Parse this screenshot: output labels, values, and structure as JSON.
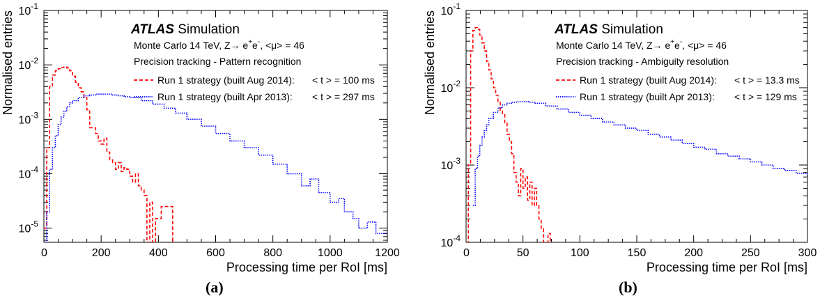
{
  "colors": {
    "red": "#ff0000",
    "blue": "#0000ff",
    "axis": "#000000"
  },
  "chart_data": [
    {
      "type": "line",
      "panel_label": "(a)",
      "experiment": "ATLAS",
      "experiment_tag": "Simulation",
      "info_lines": [
        "Monte Carlo 14 TeV,",
        "Precision tracking - Pattern recognition"
      ],
      "process": {
        "prefix": "Z→ e",
        "sup1": "+",
        "mid": "e",
        "sup2": "-",
        "suffix": ", <μ> = 46"
      },
      "xlabel": "Processing time per RoI [ms]",
      "ylabel": "Normalised entries",
      "xlim": [
        0,
        1200
      ],
      "ylim": [
        5.5e-06,
        0.1
      ],
      "yscale": "log",
      "x_ticks": [
        "0",
        "200",
        "400",
        "600",
        "800",
        "1000",
        "1200"
      ],
      "x_tick_values": [
        0,
        200,
        400,
        600,
        800,
        1000,
        1200
      ],
      "y_ticks": [
        {
          "base": "10",
          "exp": "-5",
          "v": 1e-05
        },
        {
          "base": "10",
          "exp": "-4",
          "v": 0.0001
        },
        {
          "base": "10",
          "exp": "-3",
          "v": 0.001
        },
        {
          "base": "10",
          "exp": "-2",
          "v": 0.01
        },
        {
          "base": "10",
          "exp": "-1",
          "v": 0.1
        }
      ],
      "series": [
        {
          "name": "Run 1 strategy (built Aug 2014):",
          "mean_label": "< t > =  100 ms",
          "color": "#ff0000",
          "style": "dashed",
          "points": [
            [
              0,
              1e-05
            ],
            [
              10,
              0.0003
            ],
            [
              20,
              0.004
            ],
            [
              30,
              0.0065
            ],
            [
              40,
              0.0078
            ],
            [
              50,
              0.0085
            ],
            [
              60,
              0.009
            ],
            [
              70,
              0.0092
            ],
            [
              80,
              0.0088
            ],
            [
              90,
              0.0078
            ],
            [
              100,
              0.0062
            ],
            [
              110,
              0.0048
            ],
            [
              120,
              0.0038
            ],
            [
              130,
              0.0032
            ],
            [
              140,
              0.0025
            ],
            [
              150,
              0.0015
            ],
            [
              160,
              0.0007
            ],
            [
              170,
              0.0007
            ],
            [
              180,
              0.00055
            ],
            [
              190,
              0.0004
            ],
            [
              200,
              0.00035
            ],
            [
              210,
              0.00045
            ],
            [
              220,
              0.00025
            ],
            [
              230,
              0.00018
            ],
            [
              240,
              0.00016
            ],
            [
              250,
              0.00012
            ],
            [
              260,
              0.00016
            ],
            [
              270,
              0.00011
            ],
            [
              280,
              0.00013
            ],
            [
              290,
              0.00012
            ],
            [
              300,
              9e-05
            ],
            [
              310,
              7e-05
            ],
            [
              320,
              0.0001
            ],
            [
              330,
              6e-05
            ],
            [
              340,
              5e-05
            ],
            [
              350,
              4e-05
            ],
            [
              360,
              5.5e-06
            ],
            [
              370,
              3e-05
            ],
            [
              380,
              5.5e-06
            ],
            [
              390,
              1.5e-05
            ],
            [
              400,
              1.5e-05
            ],
            [
              410,
              2.5e-05
            ],
            [
              420,
              2.5e-05
            ],
            [
              430,
              2.5e-05
            ],
            [
              440,
              2.5e-05
            ],
            [
              450,
              5.5e-06
            ]
          ]
        },
        {
          "name": "Run 1 strategy (built Apr 2013):",
          "mean_label": "< t > =  297 ms",
          "color": "#0000ff",
          "style": "dotted",
          "points": [
            [
              0,
              5.5e-06
            ],
            [
              10,
              2e-05
            ],
            [
              20,
              0.00012
            ],
            [
              30,
              0.0003
            ],
            [
              40,
              0.0005
            ],
            [
              50,
              0.0008
            ],
            [
              60,
              0.0011
            ],
            [
              70,
              0.0014
            ],
            [
              80,
              0.0017
            ],
            [
              90,
              0.002
            ],
            [
              100,
              0.0022
            ],
            [
              120,
              0.0025
            ],
            [
              140,
              0.0027
            ],
            [
              160,
              0.0028
            ],
            [
              180,
              0.0029
            ],
            [
              200,
              0.0029
            ],
            [
              220,
              0.0029
            ],
            [
              240,
              0.0028
            ],
            [
              260,
              0.0027
            ],
            [
              280,
              0.0026
            ],
            [
              300,
              0.0025
            ],
            [
              340,
              0.0022
            ],
            [
              380,
              0.0019
            ],
            [
              420,
              0.0016
            ],
            [
              460,
              0.0013
            ],
            [
              500,
              0.001
            ],
            [
              550,
              0.00075
            ],
            [
              600,
              0.00055
            ],
            [
              650,
              0.0004
            ],
            [
              700,
              0.0003
            ],
            [
              750,
              0.00022
            ],
            [
              800,
              0.00015
            ],
            [
              850,
              0.0001
            ],
            [
              900,
              6e-05
            ],
            [
              930,
              8e-05
            ],
            [
              960,
              4.5e-05
            ],
            [
              1000,
              3e-05
            ],
            [
              1030,
              3.5e-05
            ],
            [
              1050,
              2e-05
            ],
            [
              1080,
              1.5e-05
            ],
            [
              1100,
              1e-05
            ],
            [
              1130,
              1.3e-05
            ],
            [
              1160,
              8e-06
            ],
            [
              1200,
              8e-06
            ]
          ]
        }
      ]
    },
    {
      "type": "line",
      "panel_label": "(b)",
      "experiment": "ATLAS",
      "experiment_tag": "Simulation",
      "info_lines": [
        "Monte Carlo 14 TeV,",
        "Precision tracking - Ambiguity resolution"
      ],
      "process": {
        "prefix": "Z→ e",
        "sup1": "+",
        "mid": "e",
        "sup2": "-",
        "suffix": ", <μ> = 46"
      },
      "xlabel": "Processing time per RoI [ms]",
      "ylabel": "Normalised entries",
      "xlim": [
        0,
        300
      ],
      "ylim": [
        0.0001,
        0.1
      ],
      "yscale": "log",
      "x_ticks": [
        "0",
        "50",
        "100",
        "150",
        "200",
        "250",
        "300"
      ],
      "x_tick_values": [
        0,
        50,
        100,
        150,
        200,
        250,
        300
      ],
      "y_ticks": [
        {
          "base": "10",
          "exp": "-4",
          "v": 0.0001
        },
        {
          "base": "10",
          "exp": "-3",
          "v": 0.001
        },
        {
          "base": "10",
          "exp": "-2",
          "v": 0.01
        },
        {
          "base": "10",
          "exp": "-1",
          "v": 0.1
        }
      ],
      "series": [
        {
          "name": "Run 1 strategy (built Aug 2014):",
          "mean_label": "< t > = 13.3 ms",
          "color": "#ff0000",
          "style": "dashed",
          "points": [
            [
              0,
              0.0001
            ],
            [
              2,
              0.001
            ],
            [
              4,
              0.03
            ],
            [
              6,
              0.055
            ],
            [
              8,
              0.06
            ],
            [
              10,
              0.057
            ],
            [
              12,
              0.048
            ],
            [
              14,
              0.038
            ],
            [
              16,
              0.03
            ],
            [
              18,
              0.022
            ],
            [
              20,
              0.017
            ],
            [
              22,
              0.013
            ],
            [
              24,
              0.01
            ],
            [
              26,
              0.008
            ],
            [
              28,
              0.0065
            ],
            [
              30,
              0.005
            ],
            [
              32,
              0.0045
            ],
            [
              34,
              0.0035
            ],
            [
              36,
              0.0025
            ],
            [
              38,
              0.002
            ],
            [
              40,
              0.0014
            ],
            [
              42,
              0.0008
            ],
            [
              44,
              0.0006
            ],
            [
              46,
              0.0004
            ],
            [
              48,
              0.0009
            ],
            [
              50,
              0.0005
            ],
            [
              52,
              0.0007
            ],
            [
              54,
              0.00035
            ],
            [
              56,
              0.0006
            ],
            [
              58,
              0.0003
            ],
            [
              60,
              0.0005
            ],
            [
              62,
              0.0003
            ],
            [
              64,
              0.0002
            ],
            [
              66,
              0.00015
            ],
            [
              68,
              0.0001
            ],
            [
              72,
              0.00013
            ],
            [
              74,
              0.0001
            ]
          ]
        },
        {
          "name": "Run 1 strategy (built Apr 2013):",
          "mean_label": "< t > =  129 ms",
          "color": "#0000ff",
          "style": "dotted",
          "points": [
            [
              6,
              0.0003
            ],
            [
              8,
              0.0009
            ],
            [
              10,
              0.0013
            ],
            [
              12,
              0.0018
            ],
            [
              14,
              0.0023
            ],
            [
              16,
              0.0028
            ],
            [
              18,
              0.0033
            ],
            [
              20,
              0.004
            ],
            [
              24,
              0.0048
            ],
            [
              28,
              0.0055
            ],
            [
              32,
              0.006
            ],
            [
              36,
              0.0063
            ],
            [
              40,
              0.0065
            ],
            [
              45,
              0.0066
            ],
            [
              50,
              0.0066
            ],
            [
              55,
              0.0065
            ],
            [
              60,
              0.0063
            ],
            [
              70,
              0.0058
            ],
            [
              80,
              0.0053
            ],
            [
              90,
              0.0048
            ],
            [
              100,
              0.0044
            ],
            [
              110,
              0.004
            ],
            [
              120,
              0.0036
            ],
            [
              130,
              0.0033
            ],
            [
              140,
              0.003
            ],
            [
              150,
              0.0028
            ],
            [
              160,
              0.0025
            ],
            [
              170,
              0.0023
            ],
            [
              180,
              0.0021
            ],
            [
              190,
              0.0019
            ],
            [
              200,
              0.0017
            ],
            [
              210,
              0.0016
            ],
            [
              220,
              0.0014
            ],
            [
              230,
              0.0013
            ],
            [
              240,
              0.0012
            ],
            [
              250,
              0.0011
            ],
            [
              260,
              0.001
            ],
            [
              270,
              0.0009
            ],
            [
              280,
              0.00085
            ],
            [
              290,
              0.00078
            ],
            [
              300,
              0.0007
            ]
          ]
        }
      ]
    }
  ]
}
